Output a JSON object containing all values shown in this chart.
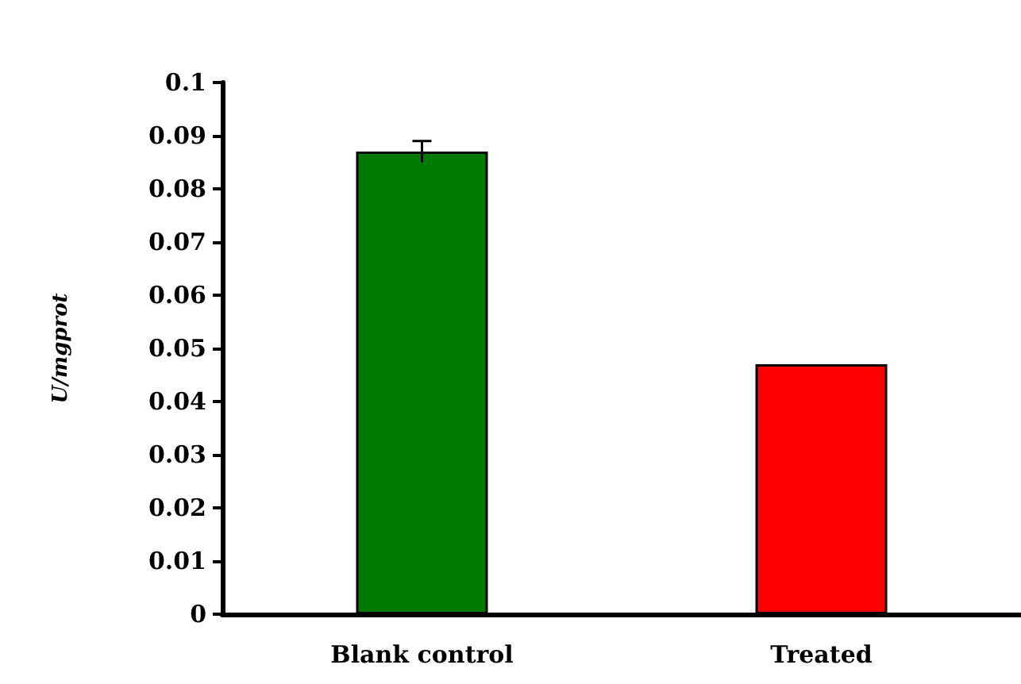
{
  "chart_data": {
    "type": "bar",
    "ylabel": "U/mgprot",
    "categories": [
      "Blank control",
      "Treated"
    ],
    "values": [
      0.087,
      0.047
    ],
    "colors": [
      "#007a00",
      "#ff0000"
    ],
    "errors": [
      0.002,
      null
    ],
    "ylim": [
      0,
      0.1
    ],
    "yticks": [
      0,
      0.01,
      0.02,
      0.03,
      0.04,
      0.05,
      0.06,
      0.07,
      0.08,
      0.09,
      0.1
    ],
    "grid": false
  }
}
